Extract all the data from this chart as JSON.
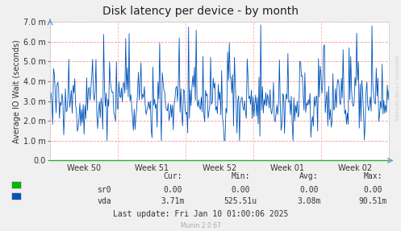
{
  "title": "Disk latency per device - by month",
  "ylabel": "Average IO Wait (seconds)",
  "background_color": "#F0F0F0",
  "plot_bg_color": "#FFFFFF",
  "grid_color_h": "#FF8888",
  "grid_color_v": "#FFAAAA",
  "line_color": "#0055BB",
  "line_color_sr0": "#00BB00",
  "ytick_values": [
    0.0,
    0.001,
    0.002,
    0.003,
    0.004,
    0.005,
    0.006,
    0.007
  ],
  "xtick_labels": [
    "Week 50",
    "Week 51",
    "Week 52",
    "Week 01",
    "Week 02"
  ],
  "ylim": [
    0.0,
    0.007
  ],
  "legend_items": [
    {
      "label": "sr0",
      "color": "#00BB00"
    },
    {
      "label": "vda",
      "color": "#0055BB"
    }
  ],
  "stats_header": [
    "Cur:",
    "Min:",
    "Avg:",
    "Max:"
  ],
  "stats_sr0": [
    "0.00",
    "0.00",
    "0.00",
    "0.00"
  ],
  "stats_vda": [
    "3.71m",
    "525.51u",
    "3.08m",
    "90.51m"
  ],
  "last_update": "Last update: Fri Jan 10 01:00:06 2025",
  "munin_version": "Munin 2.0.67",
  "rrdtool_label": "RRDTOOL / TOBI OETIKER",
  "title_fontsize": 10,
  "axis_label_fontsize": 7,
  "tick_fontsize": 7,
  "stats_fontsize": 7
}
